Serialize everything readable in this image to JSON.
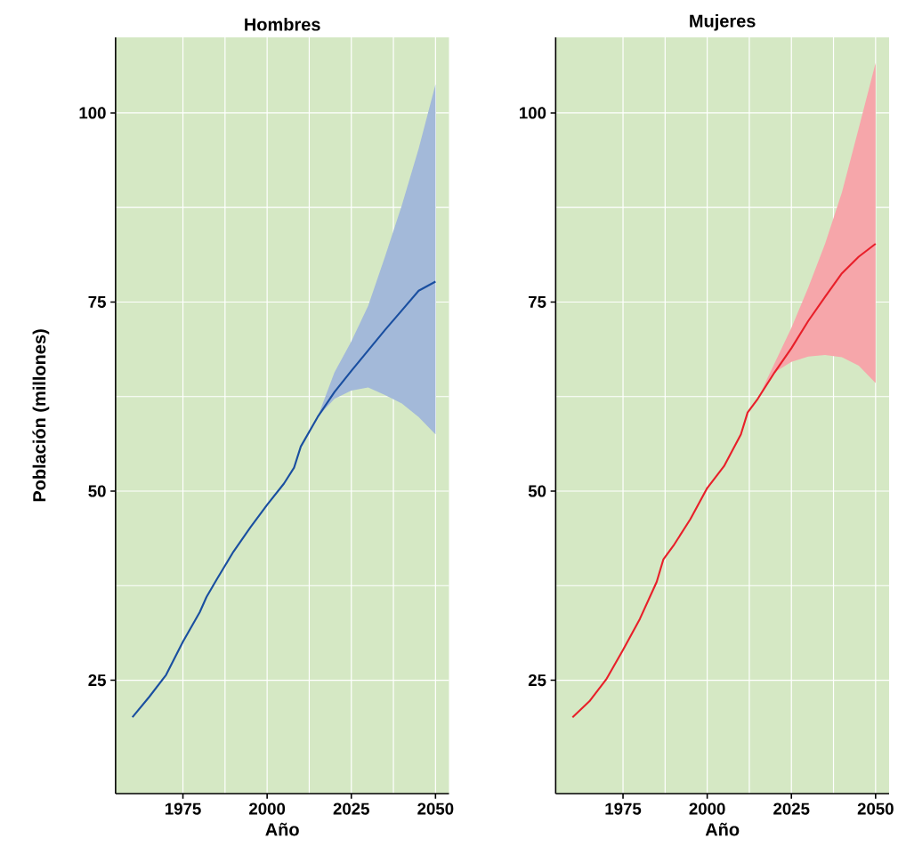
{
  "chart_data": [
    {
      "type": "line",
      "title": "Hombres",
      "xlabel": "Año",
      "ylabel": "Población (millones)",
      "xlim": [
        1955,
        2054
      ],
      "ylim": [
        10,
        110
      ],
      "xticks": [
        1975,
        2000,
        2025,
        2050
      ],
      "yticks": [
        25,
        50,
        75,
        100
      ],
      "grid": true,
      "series": [
        {
          "color": "#1a4fa0",
          "x": [
            1960,
            1965,
            1970,
            1975,
            1980,
            1982,
            1985,
            1990,
            1995,
            2000,
            2005,
            2008,
            2010,
            2015,
            2020,
            2025,
            2030,
            2035,
            2040,
            2045,
            2050
          ],
          "values": [
            20.1,
            22.8,
            25.7,
            30.1,
            34,
            36,
            38.3,
            42,
            45.2,
            48.2,
            51,
            53.1,
            55.9,
            59.8,
            63.1,
            65.9,
            68.6,
            71.3,
            73.9,
            76.5,
            77.7
          ],
          "lower": [
            null,
            null,
            null,
            null,
            null,
            null,
            null,
            null,
            null,
            null,
            null,
            null,
            null,
            59.8,
            62.2,
            63.3,
            63.7,
            62.7,
            61.6,
            59.8,
            57.5
          ],
          "upper": [
            null,
            null,
            null,
            null,
            null,
            null,
            null,
            null,
            null,
            null,
            null,
            null,
            null,
            59.8,
            65.7,
            69.8,
            74.5,
            81,
            87.8,
            95.3,
            103.8
          ]
        }
      ]
    },
    {
      "type": "line",
      "title": "Mujeres",
      "xlabel": "Año",
      "xlim": [
        1955,
        2054
      ],
      "ylim": [
        10,
        110
      ],
      "xticks": [
        1975,
        2000,
        2025,
        2050
      ],
      "yticks": [
        25,
        50,
        75,
        100
      ],
      "grid": true,
      "series": [
        {
          "color": "#e8202a",
          "x": [
            1960,
            1965,
            1970,
            1975,
            1980,
            1985,
            1987,
            1990,
            1995,
            2000,
            2005,
            2010,
            2012,
            2015,
            2020,
            2025,
            2030,
            2035,
            2040,
            2045,
            2050
          ],
          "values": [
            20.1,
            22.2,
            25.1,
            29,
            33.1,
            38,
            41,
            42.8,
            46.3,
            50.4,
            53.3,
            57.5,
            60.4,
            62.2,
            65.7,
            68.9,
            72.5,
            75.7,
            78.8,
            81,
            82.7
          ],
          "lower": [
            null,
            null,
            null,
            null,
            null,
            null,
            null,
            null,
            null,
            null,
            null,
            null,
            null,
            62.2,
            65.7,
            67.1,
            67.8,
            68,
            67.7,
            66.6,
            64.3
          ],
          "upper": [
            null,
            null,
            null,
            null,
            null,
            null,
            null,
            null,
            null,
            null,
            null,
            null,
            null,
            62.2,
            66.9,
            71.6,
            76.9,
            82.7,
            89.5,
            98,
            106.6
          ]
        }
      ]
    }
  ]
}
